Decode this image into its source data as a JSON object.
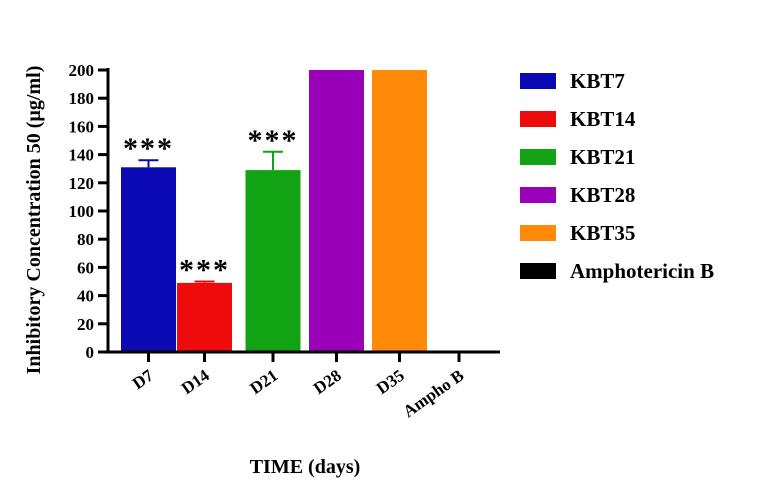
{
  "chart_data": {
    "type": "bar",
    "title": "",
    "xlabel": "TIME (days)",
    "ylabel": "Inhibitory Concentration 50 (µg/ml)",
    "ylim": [
      0,
      200
    ],
    "yticks": [
      "0",
      "20",
      "40",
      "60",
      "80",
      "100",
      "120",
      "140",
      "160",
      "180",
      "200"
    ],
    "categories": [
      "D7",
      "D14",
      "D21",
      "D28",
      "D35",
      "Ampho B"
    ],
    "values": [
      131,
      49,
      129,
      200,
      200,
      0
    ],
    "errors": [
      5,
      1,
      13,
      0,
      0,
      0
    ],
    "colors": [
      "#0a0ab4",
      "#ee0b0b",
      "#12a314",
      "#9900b8",
      "#ff8a0a",
      "#000000"
    ],
    "annotations": [
      "***",
      "***",
      "***",
      "",
      "",
      ""
    ],
    "legend": [
      {
        "label": "KBT7",
        "color": "#0a0ab4"
      },
      {
        "label": "KBT14",
        "color": "#ee0b0b"
      },
      {
        "label": "KBT21",
        "color": "#12a314"
      },
      {
        "label": "KBT28",
        "color": "#9900b8"
      },
      {
        "label": "KBT35",
        "color": "#ff8a0a"
      },
      {
        "label": "Amphotericin B",
        "color": "#000000"
      }
    ]
  }
}
